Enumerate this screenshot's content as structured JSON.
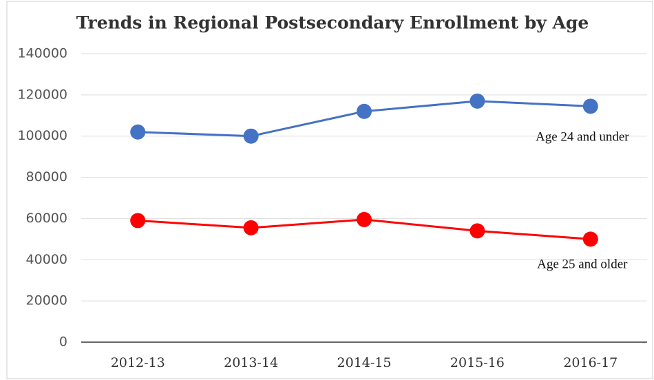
{
  "chart_data": {
    "type": "line",
    "title": "Trends in Regional Postsecondary Enrollment by Age",
    "categories": [
      "2012-13",
      "2013-14",
      "2014-15",
      "2015-16",
      "2016-17"
    ],
    "series": [
      {
        "name": "Age 24 and under",
        "color": "#4472c4",
        "values": [
          102000,
          100000,
          112000,
          117000,
          114500
        ]
      },
      {
        "name": "Age 25 and older",
        "color": "#ff0000",
        "values": [
          59000,
          55500,
          59500,
          54000,
          50000
        ]
      }
    ],
    "ylim": [
      0,
      140000
    ],
    "yticks": [
      0,
      20000,
      40000,
      60000,
      80000,
      100000,
      120000,
      140000
    ],
    "grid": true
  }
}
